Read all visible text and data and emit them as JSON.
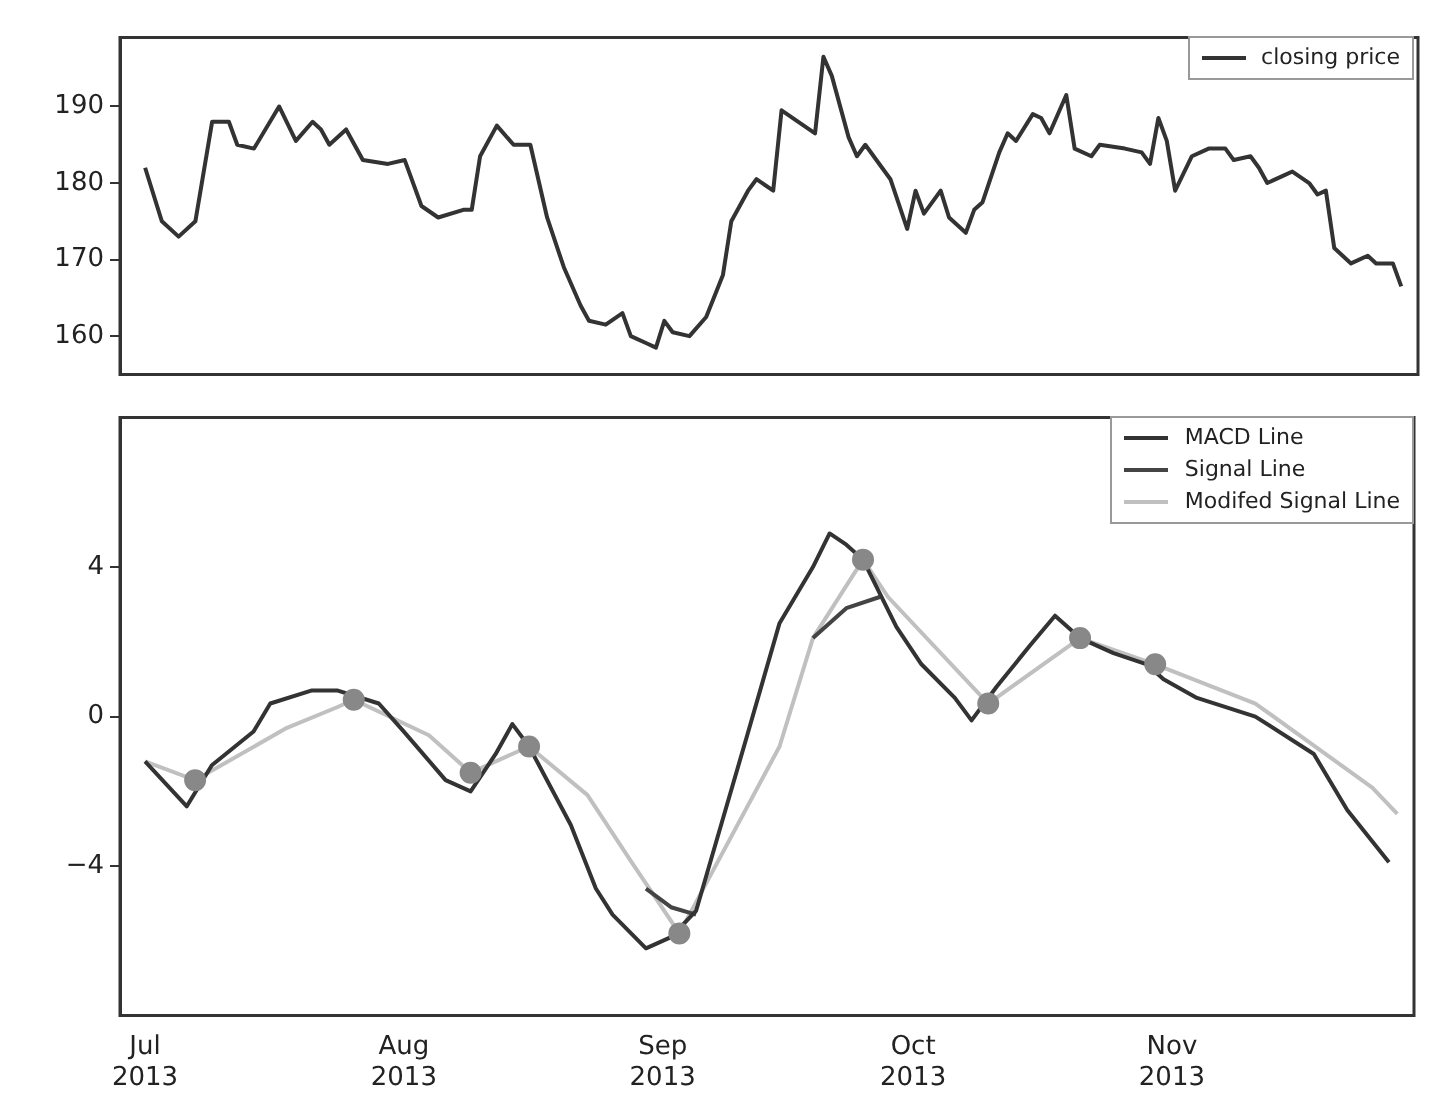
{
  "chart_data": [
    {
      "type": "line",
      "xlim": [
        "2013-06-28",
        "2013-11-30"
      ],
      "xticks": [
        {
          "value": "2013-07-01",
          "label": null
        },
        {
          "value": "2013-08-01",
          "label": null
        },
        {
          "value": "2013-09-01",
          "label": null
        },
        {
          "value": "2013-10-01",
          "label": null
        },
        {
          "value": "2013-11-01",
          "label": null
        }
      ],
      "ylim": [
        155,
        199
      ],
      "yticks": [
        160,
        170,
        180,
        190
      ],
      "tick_labels": "y",
      "grid": false,
      "legend": "top right",
      "marker": "none",
      "line_style": "solid",
      "series": [
        {
          "name": "closing price",
          "color": "#333333",
          "x": [
            "2013-07-01",
            "2013-07-03",
            "2013-07-05",
            "2013-07-07",
            "2013-07-09",
            "2013-07-11",
            "2013-07-12",
            "2013-07-14",
            "2013-07-17",
            "2013-07-19",
            "2013-07-21",
            "2013-07-22",
            "2013-07-23",
            "2013-07-25",
            "2013-07-27",
            "2013-07-30",
            "2013-08-01",
            "2013-08-03",
            "2013-08-05",
            "2013-08-08",
            "2013-08-09",
            "2013-08-10",
            "2013-08-12",
            "2013-08-14",
            "2013-08-16",
            "2013-08-18",
            "2013-08-20",
            "2013-08-22",
            "2013-08-23",
            "2013-08-25",
            "2013-08-27",
            "2013-08-28",
            "2013-08-30",
            "2013-08-31",
            "2013-09-01",
            "2013-09-02",
            "2013-09-04",
            "2013-09-06",
            "2013-09-08",
            "2013-09-09",
            "2013-09-11",
            "2013-09-12",
            "2013-09-14",
            "2013-09-15",
            "2013-09-17",
            "2013-09-19",
            "2013-09-20",
            "2013-09-21",
            "2013-09-23",
            "2013-09-24",
            "2013-09-25",
            "2013-09-27",
            "2013-09-28",
            "2013-09-30",
            "2013-10-01",
            "2013-10-02",
            "2013-10-04",
            "2013-10-05",
            "2013-10-07",
            "2013-10-08",
            "2013-10-09",
            "2013-10-11",
            "2013-10-12",
            "2013-10-13",
            "2013-10-15",
            "2013-10-16",
            "2013-10-17",
            "2013-10-19",
            "2013-10-20",
            "2013-10-22",
            "2013-10-23",
            "2013-10-26",
            "2013-10-28",
            "2013-10-29",
            "2013-10-30",
            "2013-10-31",
            "2013-11-01",
            "2013-11-03",
            "2013-11-05",
            "2013-11-07",
            "2013-11-08",
            "2013-11-10",
            "2013-11-11",
            "2013-11-12",
            "2013-11-14",
            "2013-11-15",
            "2013-11-17",
            "2013-11-18",
            "2013-11-19",
            "2013-11-20",
            "2013-11-22",
            "2013-11-24",
            "2013-11-25",
            "2013-11-27",
            "2013-11-28"
          ],
          "values": [
            182,
            175,
            173,
            175,
            188,
            188,
            185,
            184.5,
            190,
            185.5,
            188,
            187,
            185,
            187,
            183,
            182.5,
            183,
            177,
            175.5,
            176.5,
            176.5,
            183.5,
            187.5,
            185,
            185,
            175.5,
            169,
            164,
            162,
            161.5,
            163,
            160,
            159,
            158.5,
            162,
            160.5,
            160,
            162.5,
            168,
            175,
            179,
            180.5,
            179,
            189.5,
            188,
            186.5,
            196.5,
            194,
            186,
            183.5,
            185,
            182,
            180.5,
            174,
            179,
            176,
            179,
            175.5,
            173.5,
            176.5,
            177.5,
            184,
            186.5,
            185.5,
            189,
            188.5,
            186.5,
            191.5,
            184.5,
            183.5,
            185,
            184.5,
            184,
            182.5,
            188.5,
            185.5,
            179,
            183.5,
            184.5,
            184.5,
            183,
            183.5,
            182,
            180,
            181,
            181.5,
            180,
            178.5,
            179,
            171.5,
            169.5,
            170.5,
            169.5,
            169.5,
            166.5
          ]
        }
      ]
    },
    {
      "type": "line",
      "xlim": [
        "2013-06-28",
        "2013-11-30"
      ],
      "xticks": [
        {
          "value": "2013-07-01",
          "label": "Jul 2013"
        },
        {
          "value": "2013-08-01",
          "label": "Aug 2013"
        },
        {
          "value": "2013-09-01",
          "label": "Sep 2013"
        },
        {
          "value": "2013-10-01",
          "label": "Oct 2013"
        },
        {
          "value": "2013-11-01",
          "label": "Nov 2013"
        }
      ],
      "ylim": [
        -8,
        8
      ],
      "yticks": [
        -4,
        0,
        4
      ],
      "grid": false,
      "legend": "top right",
      "marker": "none",
      "line_style": "solid",
      "series": [
        {
          "name": "MACD Line",
          "color": "#333333",
          "x": [
            "2013-07-01",
            "2013-07-06",
            "2013-07-09",
            "2013-07-14",
            "2013-07-16",
            "2013-07-21",
            "2013-07-24",
            "2013-07-29",
            "2013-08-01",
            "2013-08-06",
            "2013-08-09",
            "2013-08-12",
            "2013-08-14",
            "2013-08-16",
            "2013-08-21",
            "2013-08-24",
            "2013-08-26",
            "2013-08-30",
            "2013-09-02",
            "2013-09-05",
            "2013-09-08",
            "2013-09-11",
            "2013-09-15",
            "2013-09-19",
            "2013-09-21",
            "2013-09-23",
            "2013-09-25",
            "2013-09-29",
            "2013-10-02",
            "2013-10-06",
            "2013-10-08",
            "2013-10-11",
            "2013-10-15",
            "2013-10-18",
            "2013-10-21",
            "2013-10-25",
            "2013-10-29",
            "2013-10-31",
            "2013-11-04",
            "2013-11-11",
            "2013-11-18",
            "2013-11-22",
            "2013-11-27"
          ],
          "values": [
            -1.2,
            -2.4,
            -1.3,
            -0.4,
            0.35,
            0.7,
            0.7,
            0.35,
            -0.4,
            -1.7,
            -2,
            -1,
            -0.2,
            -0.8,
            -2.9,
            -4.6,
            -5.3,
            -6.2,
            -5.9,
            -5.2,
            -2.9,
            -0.6,
            2.5,
            4,
            4.9,
            4.6,
            4.2,
            2.4,
            1.4,
            0.5,
            -0.1,
            0.8,
            1.9,
            2.7,
            2.1,
            1.7,
            1.4,
            1,
            0.5,
            0,
            -1,
            -2.5,
            -3.9
          ]
        },
        {
          "name": "Signal Line",
          "color": "#444444",
          "x": [
            "2013-08-30",
            "2013-09-02",
            "2013-09-05",
            "2013-09-12",
            "2013-09-19",
            "2013-09-23",
            "2013-09-27"
          ],
          "values": [
            -4.6,
            -5.1,
            -5.3,
            null,
            2.1,
            2.9,
            3.2
          ]
        },
        {
          "name": "Modifed Signal Line",
          "color": "#c0c0c0",
          "x": [
            "2013-07-01",
            "2013-07-07",
            "2013-07-18",
            "2013-07-24",
            "2013-07-26",
            "2013-08-04",
            "2013-08-09",
            "2013-08-16",
            "2013-08-23",
            "2013-08-28",
            "2013-09-03",
            "2013-09-15",
            "2013-09-19",
            "2013-09-25",
            "2013-09-28",
            "2013-10-10",
            "2013-10-21",
            "2013-10-30",
            "2013-11-11",
            "2013-11-25",
            "2013-11-28"
          ],
          "values": [
            -1.2,
            -1.7,
            -0.3,
            0.25,
            0.45,
            -0.5,
            -1.5,
            -0.8,
            -2.1,
            -3.8,
            -5.8,
            -0.8,
            2.1,
            4.2,
            3.2,
            0.35,
            2.1,
            1.4,
            0.35,
            -1.9,
            -2.6
          ]
        },
        {
          "type": "scatter",
          "marker": "circle",
          "color": "#888888",
          "x": [
            "2013-07-07",
            "2013-07-26",
            "2013-08-09",
            "2013-08-16",
            "2013-09-03",
            "2013-09-25",
            "2013-10-10",
            "2013-10-21",
            "2013-10-30"
          ],
          "values": [
            -1.7,
            0.45,
            -1.5,
            -0.8,
            -5.8,
            4.2,
            0.35,
            2.1,
            1.4
          ]
        }
      ]
    }
  ]
}
